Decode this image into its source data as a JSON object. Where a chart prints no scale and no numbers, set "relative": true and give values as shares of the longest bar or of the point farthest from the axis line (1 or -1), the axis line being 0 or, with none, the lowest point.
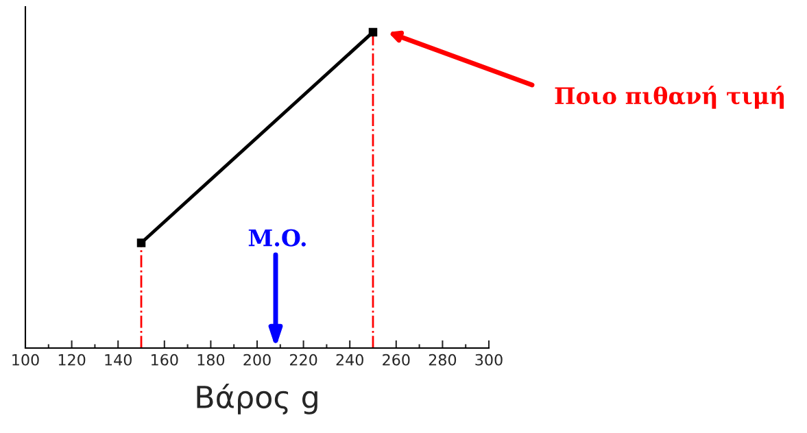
{
  "chart_data": {
    "type": "line",
    "relative": true,
    "xlabel": "Βάρος g",
    "x": [
      150,
      250
    ],
    "series": [
      {
        "color": "#000000",
        "values": [
          0.333,
          1
        ]
      }
    ],
    "marker": "square",
    "line_style": "solid",
    "xlim": [
      100,
      300
    ],
    "xticks": [
      100,
      120,
      140,
      160,
      180,
      200,
      220,
      240,
      260,
      280,
      300
    ],
    "tick_labels": "x",
    "grid": false,
    "legend": false,
    "ref_lines": [
      {
        "axis": "x",
        "value": 150,
        "color": "#ff0000",
        "line_style": "dashdot"
      },
      {
        "axis": "x",
        "value": 250,
        "color": "#ff0000",
        "line_style": "dashdot"
      }
    ],
    "annotations": [
      "Ποιο πιθανή τιμή",
      "M.O."
    ]
  }
}
